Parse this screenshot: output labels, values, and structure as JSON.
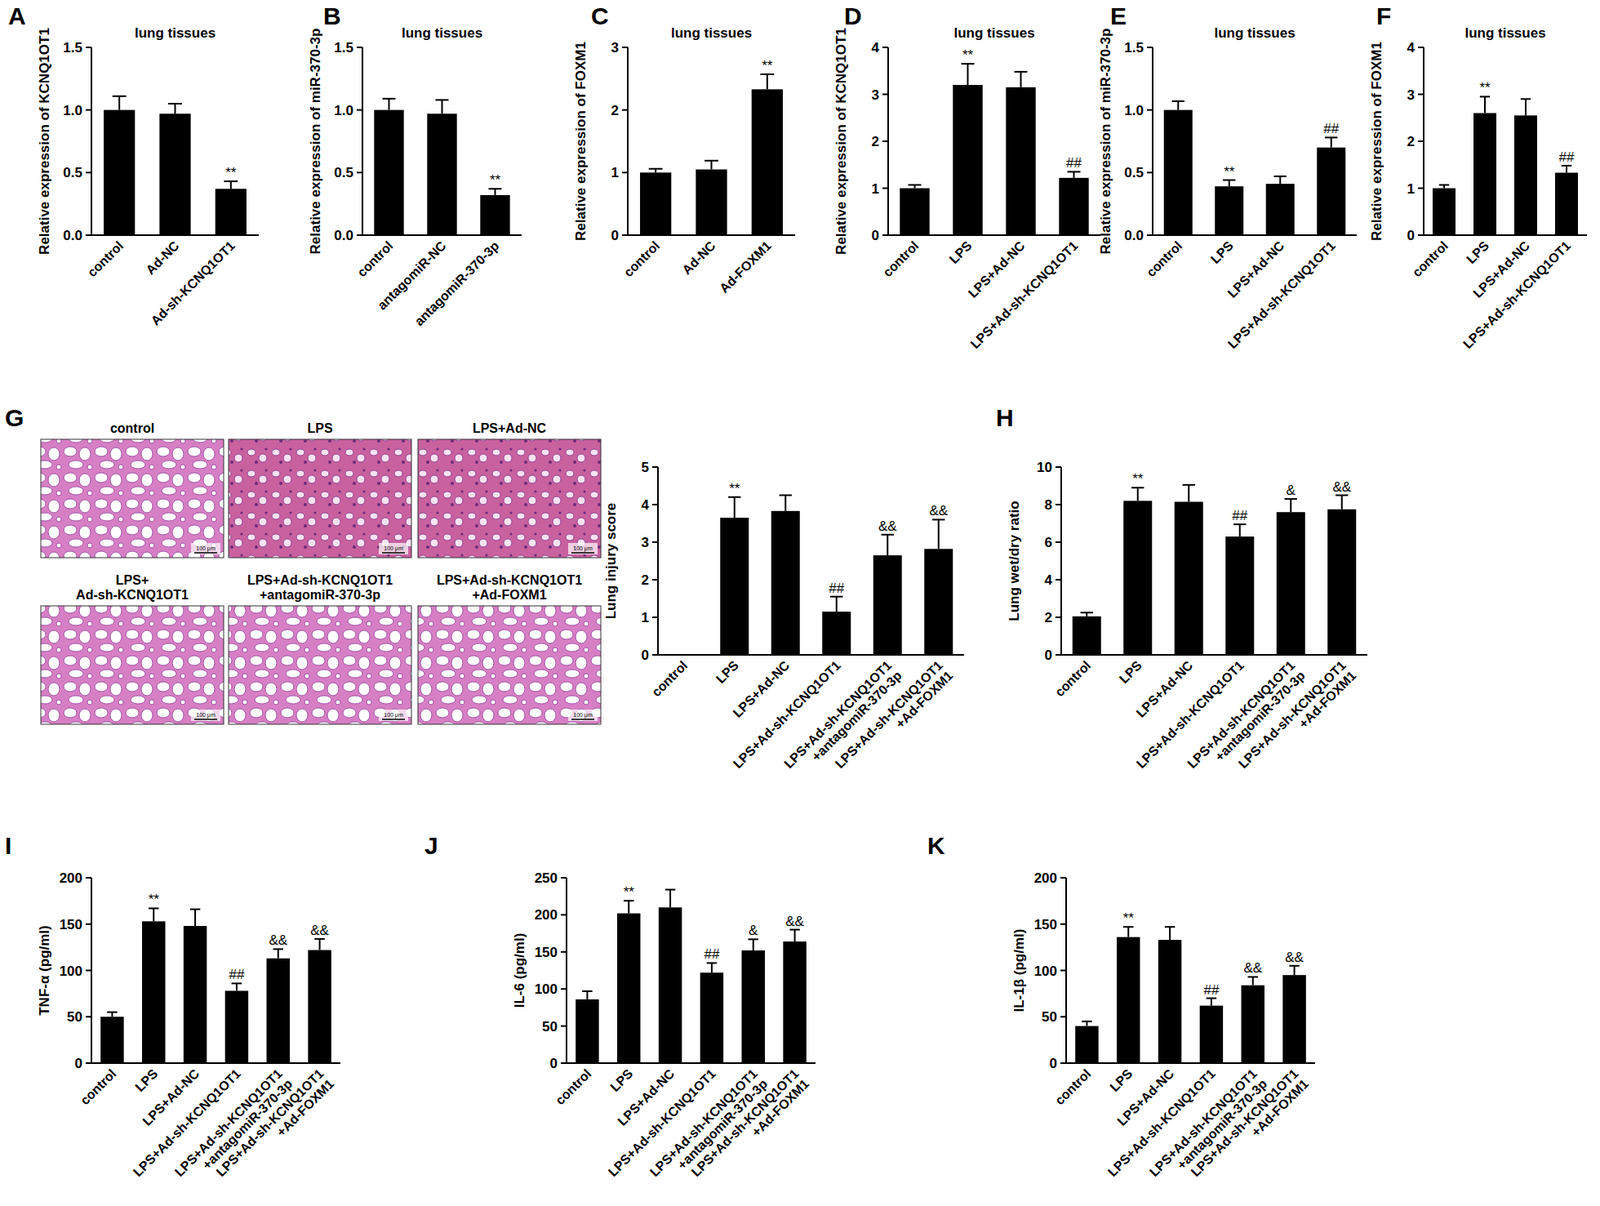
{
  "chart_data": [
    {
      "panel": "A",
      "type": "bar",
      "title": "lung tissues",
      "y_label": "Relative expression of KCNQ1OT1",
      "categories": [
        "control",
        "Ad-NC",
        "Ad-sh-KCNQ1OT1"
      ],
      "values": [
        1.0,
        0.97,
        0.37
      ],
      "errors": [
        0.11,
        0.08,
        0.06
      ],
      "annotations": [
        null,
        null,
        "**"
      ],
      "color": "#000000",
      "ylim": [
        0,
        1.5
      ],
      "yticks": [
        {
          "value": 0,
          "label": "0.0"
        },
        {
          "value": 0.5,
          "label": "0.5"
        },
        {
          "value": 1,
          "label": "1.0"
        },
        {
          "value": 1.5,
          "label": "1.5"
        }
      ]
    },
    {
      "panel": "B",
      "type": "bar",
      "title": "lung tissues",
      "y_label": "Relative expression of miR-370-3p",
      "categories": [
        "control",
        "antagomiR-NC",
        "antagomiR-370-3p"
      ],
      "values": [
        1.0,
        0.97,
        0.32
      ],
      "errors": [
        0.09,
        0.11,
        0.05
      ],
      "annotations": [
        null,
        null,
        "**"
      ],
      "color": "#000000",
      "ylim": [
        0,
        1.5
      ],
      "yticks": [
        {
          "value": 0,
          "label": "0.0"
        },
        {
          "value": 0.5,
          "label": "0.5"
        },
        {
          "value": 1,
          "label": "1.0"
        },
        {
          "value": 1.5,
          "label": "1.5"
        }
      ]
    },
    {
      "panel": "C",
      "type": "bar",
      "title": "lung tissues",
      "y_label": "Relative expression of FOXM1",
      "categories": [
        "control",
        "Ad-NC",
        "Ad-FOXM1"
      ],
      "values": [
        1.0,
        1.05,
        2.33
      ],
      "errors": [
        0.06,
        0.14,
        0.24
      ],
      "annotations": [
        null,
        null,
        "**"
      ],
      "color": "#000000",
      "ylim": [
        0,
        3
      ],
      "yticks": [
        0,
        1,
        2,
        3
      ]
    },
    {
      "panel": "D",
      "type": "bar",
      "title": "lung tissues",
      "y_label": "Relative expression of KCNQ1OT1",
      "categories": [
        "control",
        "LPS",
        "LPS+Ad-NC",
        "LPS+Ad-sh-KCNQ1OT1"
      ],
      "values": [
        1.0,
        3.2,
        3.15,
        1.22
      ],
      "errors": [
        0.07,
        0.45,
        0.33,
        0.13
      ],
      "annotations": [
        null,
        "**",
        null,
        "##"
      ],
      "color": "#000000",
      "ylim": [
        0,
        4
      ],
      "yticks": [
        0,
        1,
        2,
        3,
        4
      ]
    },
    {
      "panel": "E",
      "type": "bar",
      "title": "lung tissues",
      "y_label": "Relative expression of miR-370-3p",
      "categories": [
        "control",
        "LPS",
        "LPS+Ad-NC",
        "LPS+Ad-sh-KCNQ1OT1"
      ],
      "values": [
        1.0,
        0.39,
        0.41,
        0.7
      ],
      "errors": [
        0.07,
        0.05,
        0.06,
        0.08
      ],
      "annotations": [
        null,
        "**",
        null,
        "##"
      ],
      "color": "#000000",
      "ylim": [
        0,
        1.5
      ],
      "yticks": [
        {
          "value": 0,
          "label": "0.0"
        },
        {
          "value": 0.5,
          "label": "0.5"
        },
        {
          "value": 1,
          "label": "1.0"
        },
        {
          "value": 1.5,
          "label": "1.5"
        }
      ]
    },
    {
      "panel": "F",
      "type": "bar",
      "title": "lung tissues",
      "y_label": "Relative expression of FOXM1",
      "categories": [
        "control",
        "LPS",
        "LPS+Ad-NC",
        "LPS+Ad-sh-KCNQ1OT1"
      ],
      "values": [
        1.0,
        2.6,
        2.55,
        1.33
      ],
      "errors": [
        0.07,
        0.35,
        0.35,
        0.15
      ],
      "annotations": [
        null,
        "**",
        null,
        "##"
      ],
      "color": "#000000",
      "ylim": [
        0,
        4
      ],
      "yticks": [
        0,
        1,
        2,
        3,
        4
      ]
    },
    {
      "panel": "G",
      "type": "bar",
      "y_label": "Lung injury score",
      "categories": [
        "control",
        "LPS",
        "LPS+Ad-NC",
        "LPS+Ad-sh-KCNQ1OT1",
        "LPS+Ad-sh-KCNQ1OT1\n+antagomiR-370-3p",
        "LPS+Ad-sh-KCNQ1OT1\n+Ad-FOXM1"
      ],
      "values": [
        0,
        3.65,
        3.83,
        1.15,
        2.65,
        2.82
      ],
      "errors": [
        0,
        0.55,
        0.42,
        0.4,
        0.55,
        0.78
      ],
      "annotations": [
        null,
        "**",
        null,
        "##",
        "&&",
        "&&"
      ],
      "color": "#000000",
      "ylim": [
        0,
        5
      ],
      "yticks": [
        0,
        1,
        2,
        3,
        4,
        5
      ],
      "images": {
        "labels": [
          "control",
          "LPS",
          "LPS+Ad-NC",
          "LPS+\nAd-sh-KCNQ1OT1",
          "LPS+Ad-sh-KCNQ1OT1\n+antagomiR-370-3p",
          "LPS+Ad-sh-KCNQ1OT1\n+Ad-FOXM1"
        ],
        "scale_bar": "100 μm"
      }
    },
    {
      "panel": "H",
      "type": "bar",
      "y_label": "Lung wet/dry ratio",
      "categories": [
        "control",
        "LPS",
        "LPS+Ad-NC",
        "LPS+Ad-sh-KCNQ1OT1",
        "LPS+Ad-sh-KCNQ1OT1\n+antagomiR-370-3p",
        "LPS+Ad-sh-KCNQ1OT1\n+Ad-FOXM1"
      ],
      "values": [
        2.05,
        8.2,
        8.15,
        6.3,
        7.6,
        7.75
      ],
      "errors": [
        0.2,
        0.7,
        0.9,
        0.65,
        0.7,
        0.75
      ],
      "annotations": [
        null,
        "**",
        null,
        "##",
        "&",
        "&&"
      ],
      "color": "#000000",
      "ylim": [
        0,
        10
      ],
      "yticks": [
        0,
        2,
        4,
        6,
        8,
        10
      ]
    },
    {
      "panel": "I",
      "type": "bar",
      "y_label": "TNF-α (pg/ml)",
      "categories": [
        "control",
        "LPS",
        "LPS+Ad-NC",
        "LPS+Ad-sh-KCNQ1OT1",
        "LPS+Ad-sh-KCNQ1OT1\n+antagomiR-370-3p",
        "LPS+Ad-sh-KCNQ1OT1\n+Ad-FOXM1"
      ],
      "values": [
        50,
        153,
        148,
        78,
        113,
        122
      ],
      "errors": [
        5,
        14,
        18,
        8,
        10,
        12
      ],
      "annotations": [
        null,
        "**",
        null,
        "##",
        "&&",
        "&&"
      ],
      "color": "#000000",
      "ylim": [
        0,
        200
      ],
      "yticks": [
        0,
        50,
        100,
        150,
        200
      ]
    },
    {
      "panel": "J",
      "type": "bar",
      "y_label": "IL-6 (pg/ml)",
      "categories": [
        "control",
        "LPS",
        "LPS+Ad-NC",
        "LPS+Ad-sh-KCNQ1OT1",
        "LPS+Ad-sh-KCNQ1OT1\n+antagomiR-370-3p",
        "LPS+Ad-sh-KCNQ1OT1\n+Ad-FOXM1"
      ],
      "values": [
        86,
        202,
        210,
        122,
        152,
        164
      ],
      "errors": [
        11,
        17,
        24,
        13,
        15,
        16
      ],
      "annotations": [
        null,
        "**",
        null,
        "##",
        "&",
        "&&"
      ],
      "color": "#000000",
      "ylim": [
        0,
        250
      ],
      "yticks": [
        0,
        50,
        100,
        150,
        200,
        250
      ]
    },
    {
      "panel": "K",
      "type": "bar",
      "y_label": "IL-1β (pg/ml)",
      "categories": [
        "control",
        "LPS",
        "LPS+Ad-NC",
        "LPS+Ad-sh-KCNQ1OT1",
        "LPS+Ad-sh-KCNQ1OT1\n+antagomiR-370-3p",
        "LPS+Ad-sh-KCNQ1OT1\n+Ad-FOXM1"
      ],
      "values": [
        40,
        136,
        133,
        62,
        84,
        95
      ],
      "errors": [
        5,
        11,
        14,
        8,
        9,
        10
      ],
      "annotations": [
        null,
        "**",
        null,
        "##",
        "&&",
        "&&"
      ],
      "color": "#000000",
      "ylim": [
        0,
        200
      ],
      "yticks": [
        0,
        50,
        100,
        150,
        200
      ]
    }
  ]
}
